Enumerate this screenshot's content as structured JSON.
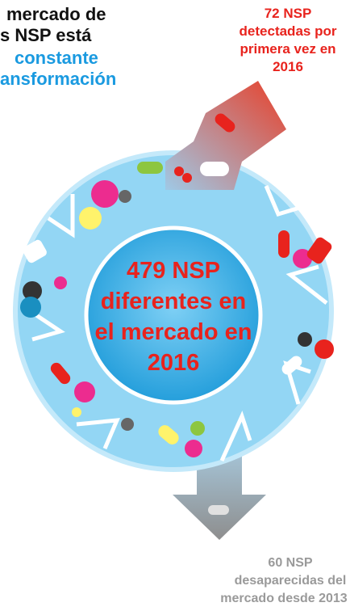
{
  "header": {
    "lines": [
      "mercado de",
      "s NSP está",
      "constante",
      "ansformación"
    ]
  },
  "inflow": {
    "lines": [
      "72 NSP",
      "detectadas por",
      "primera vez en",
      "2016"
    ]
  },
  "center": {
    "lines": [
      "479 NSP",
      "diferentes en",
      "el mercado en",
      "2016"
    ]
  },
  "outflow": {
    "lines": [
      "60 NSP",
      "desaparecidas del",
      "mercado desde 2013"
    ]
  }
}
